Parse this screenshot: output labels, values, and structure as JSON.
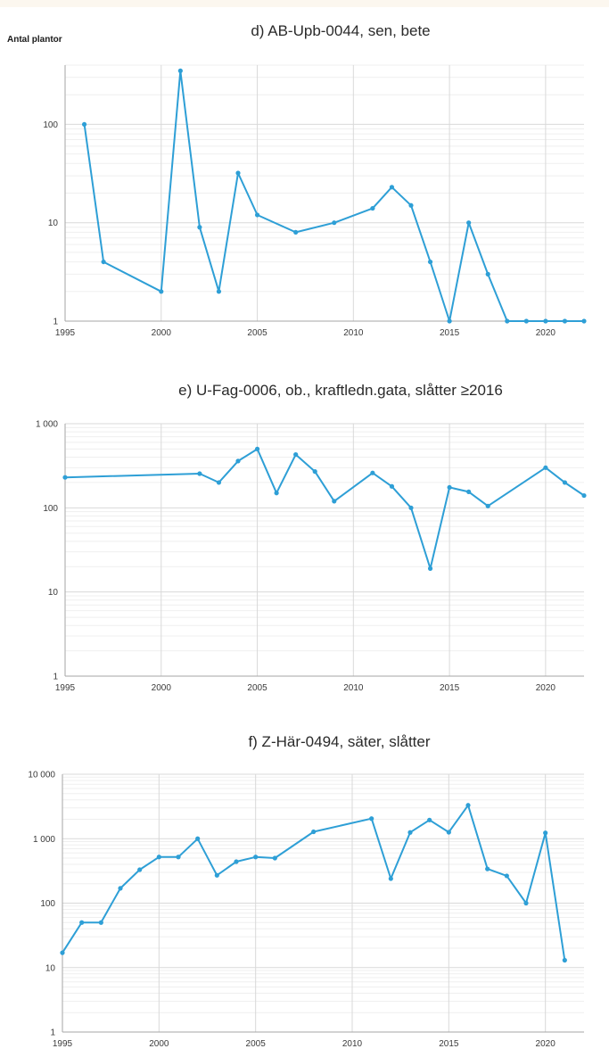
{
  "colors": {
    "series": "#2e9fd6",
    "grid": "#d9d9d9",
    "axis": "#a6a6a6"
  },
  "chart_data": [
    {
      "type": "line",
      "title": "d) AB-Upb-0044, sen, bete",
      "ylabel": "Antal plantor",
      "yscale": "log",
      "ylim": [
        1,
        400
      ],
      "xlim": [
        1995,
        2022
      ],
      "y_ticks": [
        1,
        10,
        100
      ],
      "y_tick_labels": [
        "1",
        "10",
        "100"
      ],
      "x_ticks": [
        1995,
        2000,
        2005,
        2010,
        2015,
        2020
      ],
      "x_tick_labels": [
        "1995",
        "2000",
        "2005",
        "2010",
        "2015",
        "2020"
      ],
      "grid": true,
      "series": [
        {
          "x": [
            1996,
            1997,
            2000,
            2001,
            2002,
            2003,
            2004,
            2005,
            2007,
            2009,
            2011,
            2012,
            2013,
            2014,
            2015,
            2016,
            2017,
            2018,
            2019,
            2020,
            2021,
            2022
          ],
          "values": [
            100,
            4,
            2,
            350,
            9,
            2,
            32,
            12,
            8,
            10,
            14,
            23,
            15,
            4,
            1,
            10,
            3,
            1,
            1,
            1,
            1,
            1
          ]
        }
      ]
    },
    {
      "type": "line",
      "title": "e) U-Fag-0006, ob., kraftledn.gata, slåtter ≥2016",
      "ylabel": "",
      "yscale": "log",
      "ylim": [
        1,
        1000
      ],
      "xlim": [
        1995,
        2022
      ],
      "y_ticks": [
        1,
        10,
        100,
        1000
      ],
      "y_tick_labels": [
        "1",
        "10",
        "100",
        "1 000"
      ],
      "x_ticks": [
        1995,
        2000,
        2005,
        2010,
        2015,
        2020
      ],
      "x_tick_labels": [
        "1995",
        "2000",
        "2005",
        "2010",
        "2015",
        "2020"
      ],
      "grid": true,
      "series": [
        {
          "x": [
            1995,
            2002,
            2003,
            2004,
            2005,
            2006,
            2007,
            2008,
            2009,
            2011,
            2012,
            2013,
            2014,
            2015,
            2016,
            2017,
            2020,
            2021,
            2022
          ],
          "values": [
            230,
            255,
            200,
            360,
            500,
            150,
            430,
            270,
            120,
            260,
            180,
            100,
            19,
            175,
            155,
            105,
            300,
            200,
            140
          ]
        }
      ]
    },
    {
      "type": "line",
      "title": "f) Z-Här-0494, säter, slåtter",
      "ylabel": "",
      "yscale": "log",
      "ylim": [
        1,
        10000
      ],
      "xlim": [
        1995,
        2022
      ],
      "y_ticks": [
        1,
        10,
        100,
        1000,
        10000
      ],
      "y_tick_labels": [
        "1",
        "10",
        "100",
        "1 000",
        "10 000"
      ],
      "x_ticks": [
        1995,
        2000,
        2005,
        2010,
        2015,
        2020
      ],
      "x_tick_labels": [
        "1995",
        "2000",
        "2005",
        "2010",
        "2015",
        "2020"
      ],
      "grid": true,
      "series": [
        {
          "x": [
            1995,
            1996,
            1997,
            1998,
            1999,
            2000,
            2001,
            2002,
            2003,
            2004,
            2005,
            2006,
            2008,
            2011,
            2012,
            2013,
            2014,
            2015,
            2016,
            2017,
            2018,
            2019,
            2020,
            2021
          ],
          "values": [
            17,
            50,
            50,
            170,
            330,
            520,
            520,
            1000,
            270,
            440,
            520,
            500,
            1280,
            2050,
            240,
            1250,
            1950,
            1260,
            3300,
            340,
            265,
            100,
            1230,
            13
          ]
        }
      ]
    }
  ]
}
